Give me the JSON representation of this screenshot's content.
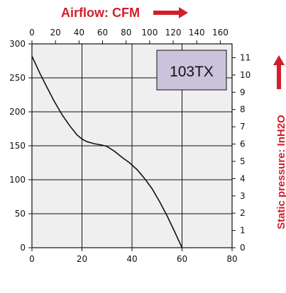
{
  "chart_data": {
    "type": "line",
    "top_axis_label": "Airflow: CFM",
    "right_axis_label": "Static pressure: InH2O",
    "model_box_label": "103TX",
    "x_bottom": {
      "min": 0,
      "max": 80,
      "ticks": [
        "0",
        "20",
        "40",
        "60",
        "80"
      ]
    },
    "x_top": {
      "min": 0,
      "max": 170,
      "ticks": [
        "0",
        "20",
        "40",
        "60",
        "80",
        "100",
        "120",
        "140",
        "160"
      ]
    },
    "y_left": {
      "min": 0,
      "max": 300,
      "ticks": [
        "0",
        "50",
        "100",
        "150",
        "200",
        "250",
        "300"
      ]
    },
    "y_right": {
      "min": 0,
      "max": 11.8,
      "ticks": [
        "0",
        "1",
        "2",
        "3",
        "4",
        "5",
        "6",
        "7",
        "8",
        "9",
        "10",
        "11"
      ]
    },
    "grid": true,
    "series": [
      {
        "x": [
          0,
          3,
          6,
          9,
          12,
          15,
          18,
          20,
          22,
          25,
          28,
          30,
          33,
          36,
          39,
          42,
          45,
          48,
          51,
          54,
          57,
          60
        ],
        "y": [
          282,
          258,
          236,
          215,
          196,
          180,
          166,
          160,
          156,
          153,
          151,
          149,
          142,
          133,
          125,
          115,
          102,
          87,
          68,
          47,
          24,
          0
        ]
      }
    ],
    "colors": {
      "accent_red": "#d01f2b",
      "box_fill": "#cbc3dc",
      "plot_bg": "#efefef"
    }
  }
}
